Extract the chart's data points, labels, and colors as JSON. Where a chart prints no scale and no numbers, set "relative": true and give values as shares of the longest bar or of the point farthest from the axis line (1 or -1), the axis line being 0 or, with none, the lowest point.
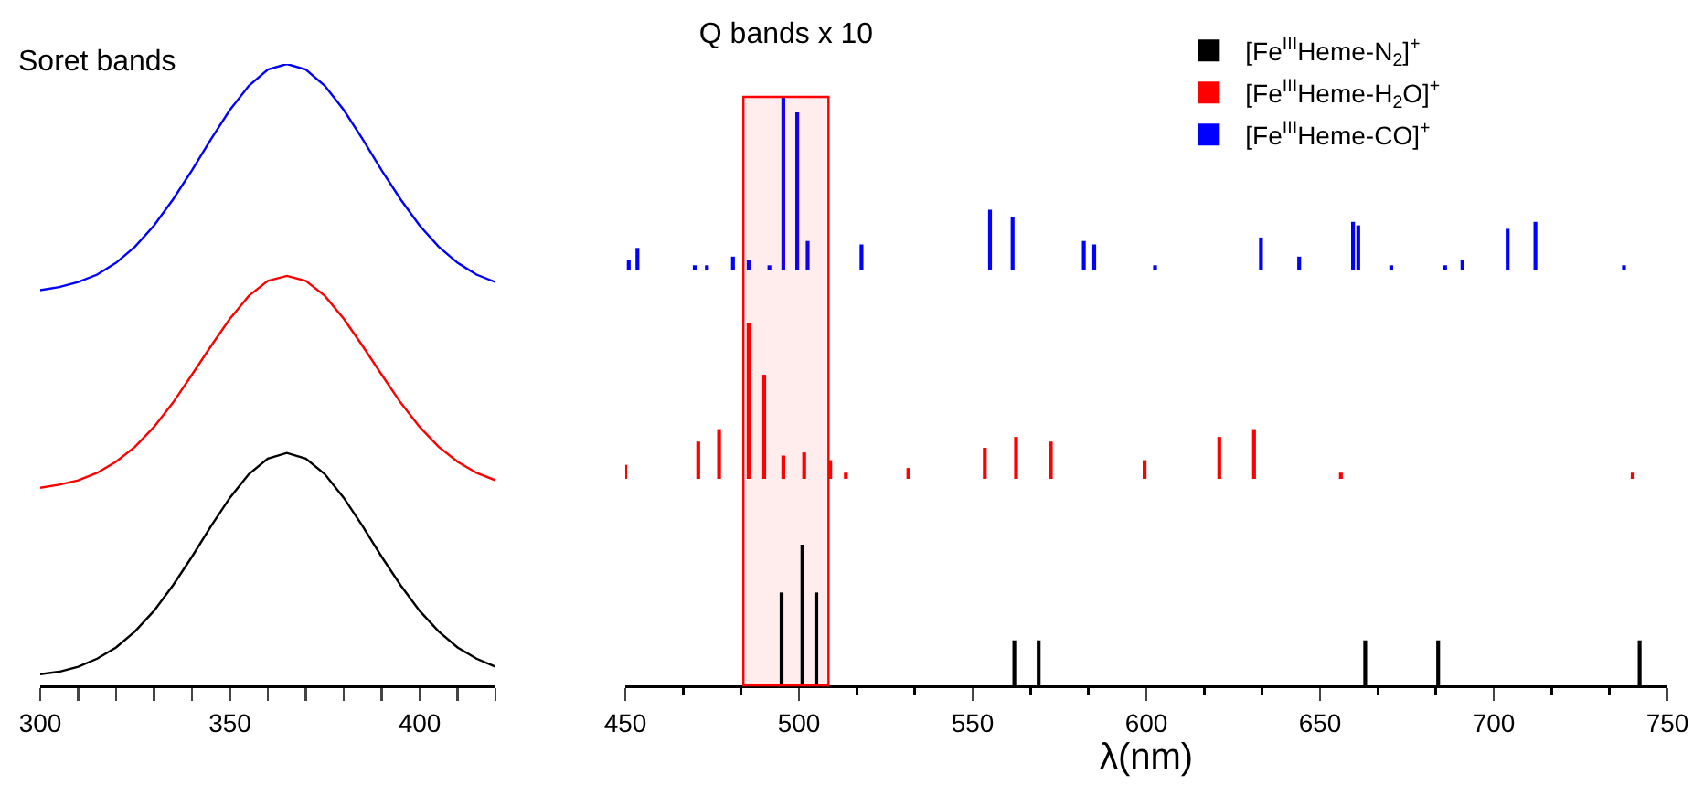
{
  "chart_data": [
    {
      "type": "line",
      "title": "Soret bands",
      "relative": true,
      "grid": false,
      "legend": false,
      "tick_labels": "x",
      "marker": "none",
      "line_style": "solid",
      "xlim": [
        300,
        420
      ],
      "xticks": [
        300,
        {
          "value": 310,
          "label": null
        },
        {
          "value": 320,
          "label": null
        },
        {
          "value": 330,
          "label": null
        },
        {
          "value": 340,
          "label": null
        },
        350,
        {
          "value": 360,
          "label": null
        },
        {
          "value": 370,
          "label": null
        },
        {
          "value": 380,
          "label": null
        },
        {
          "value": 390,
          "label": null
        },
        400,
        {
          "value": 410,
          "label": null
        },
        {
          "value": 420,
          "label": null
        }
      ],
      "x": [
        300,
        305,
        310,
        315,
        320,
        325,
        330,
        335,
        340,
        345,
        350,
        355,
        360,
        365,
        370,
        375,
        380,
        385,
        390,
        395,
        400,
        405,
        410,
        415,
        420
      ],
      "series": [
        {
          "color": "#000000",
          "values": [
            0.018,
            0.022,
            0.03,
            0.043,
            0.061,
            0.087,
            0.12,
            0.161,
            0.207,
            0.256,
            0.302,
            0.34,
            0.365,
            0.374,
            0.365,
            0.34,
            0.302,
            0.256,
            0.207,
            0.161,
            0.12,
            0.087,
            0.061,
            0.043,
            0.03
          ]
        },
        {
          "color": "#ff0000",
          "values": [
            0.318,
            0.323,
            0.33,
            0.342,
            0.36,
            0.384,
            0.416,
            0.455,
            0.5,
            0.546,
            0.59,
            0.627,
            0.651,
            0.659,
            0.651,
            0.627,
            0.59,
            0.546,
            0.5,
            0.455,
            0.416,
            0.384,
            0.36,
            0.342,
            0.33
          ]
        },
        {
          "color": "#0000ff",
          "values": [
            0.636,
            0.641,
            0.649,
            0.661,
            0.68,
            0.706,
            0.74,
            0.782,
            0.829,
            0.879,
            0.926,
            0.965,
            0.991,
            1,
            0.991,
            0.965,
            0.926,
            0.879,
            0.829,
            0.782,
            0.74,
            0.706,
            0.68,
            0.661,
            0.649
          ]
        }
      ]
    },
    {
      "type": "bar",
      "title": "Q bands x 10",
      "relative": true,
      "grid": false,
      "legend": "top right",
      "tick_labels": false,
      "xlim": [
        450,
        750
      ],
      "series": [
        {
          "name": "[Fe$^{III}$Heme-CO]$^{+}$",
          "color": "#0000ff",
          "x": [
            451,
            453.5,
            470,
            473.5,
            481,
            485.5,
            491.5,
            495.5,
            499.5,
            502.5,
            518,
            555,
            561.5,
            582,
            585,
            602.5,
            633,
            644,
            659.5,
            661,
            670.5,
            686,
            691,
            704,
            712,
            737.5
          ],
          "values": [
            0.06,
            0.13,
            0.03,
            0.03,
            0.08,
            0.06,
            0.03,
            1,
            0.91,
            0.17,
            0.15,
            0.35,
            0.31,
            0.17,
            0.15,
            0.03,
            0.19,
            0.08,
            0.28,
            0.26,
            0.03,
            0.03,
            0.06,
            0.24,
            0.28,
            0.03
          ]
        }
      ]
    },
    {
      "type": "bar",
      "relative": true,
      "grid": false,
      "legend": "top right",
      "tick_labels": false,
      "xlim": [
        450,
        750
      ],
      "series": [
        {
          "name": "[Fe$^{III}$Heme-H$_{2}$O]$^{+}$",
          "color": "#ff0000",
          "x": [
            450,
            471,
            477,
            485.5,
            490,
            495.5,
            501.5,
            509,
            513.5,
            531.5,
            553.5,
            562.5,
            572.5,
            599.5,
            621,
            631,
            656,
            740
          ],
          "values": [
            0.09,
            0.24,
            0.32,
            1,
            0.67,
            0.15,
            0.17,
            0.12,
            0.04,
            0.07,
            0.2,
            0.27,
            0.24,
            0.12,
            0.27,
            0.32,
            0.04,
            0.04
          ]
        }
      ]
    },
    {
      "type": "bar",
      "xlabel": "λ(nm)",
      "relative": true,
      "grid": false,
      "legend": "top right",
      "tick_labels": "x",
      "xlim": [
        450,
        750
      ],
      "xticks": [
        450,
        500,
        550,
        600,
        650,
        700,
        750
      ],
      "bands": [
        {
          "axis": "x",
          "from": 484,
          "to": 508.5,
          "color": "#ff0000"
        }
      ],
      "series": [
        {
          "name": "[Fe$^{III}$Heme-N$_{2}$]$^{+}$",
          "color": "#000000",
          "x": [
            495,
            501,
            505,
            562,
            569,
            663,
            684,
            742
          ],
          "values": [
            0.66,
            1,
            0.66,
            0.32,
            0.32,
            0.32,
            0.32,
            0.32
          ]
        }
      ]
    }
  ]
}
